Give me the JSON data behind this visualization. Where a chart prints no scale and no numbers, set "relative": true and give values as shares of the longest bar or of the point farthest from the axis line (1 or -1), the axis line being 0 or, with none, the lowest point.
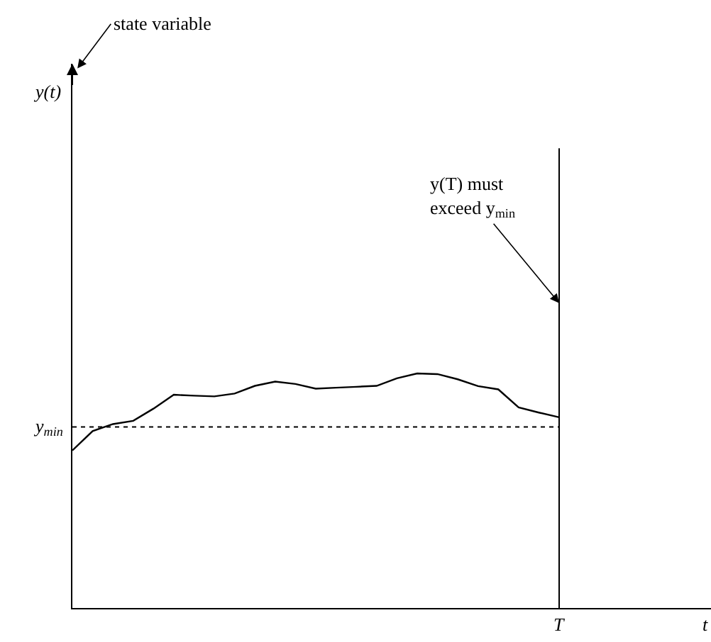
{
  "chart_data": {
    "type": "line",
    "relative": true,
    "categories": [
      null,
      null,
      null,
      null,
      null,
      null,
      null,
      null,
      null,
      null,
      null,
      null,
      null,
      null,
      null,
      null,
      null,
      null,
      null,
      null,
      null,
      null,
      null,
      null,
      null
    ],
    "series": [
      {
        "color": "#000000",
        "values": [
          0.672,
          0.754,
          0.784,
          0.798,
          0.85,
          0.909,
          0.905,
          0.902,
          0.914,
          0.947,
          0.965,
          0.955,
          0.935,
          0.939,
          0.943,
          0.947,
          0.979,
          1,
          0.997,
          0.975,
          0.946,
          0.932,
          0.855,
          0.833,
          0.813
        ]
      }
    ],
    "ref_lines": [
      {
        "axis": "y",
        "value": 0.772,
        "label": "y$_{min}$",
        "line_style": "dotted",
        "color": "#000000"
      }
    ],
    "annotations": [
      "state variable",
      "y(T) must\nexceed y$_{min}$",
      "T",
      "y(t)",
      "t"
    ],
    "marker": "none",
    "line_style": "solid"
  }
}
